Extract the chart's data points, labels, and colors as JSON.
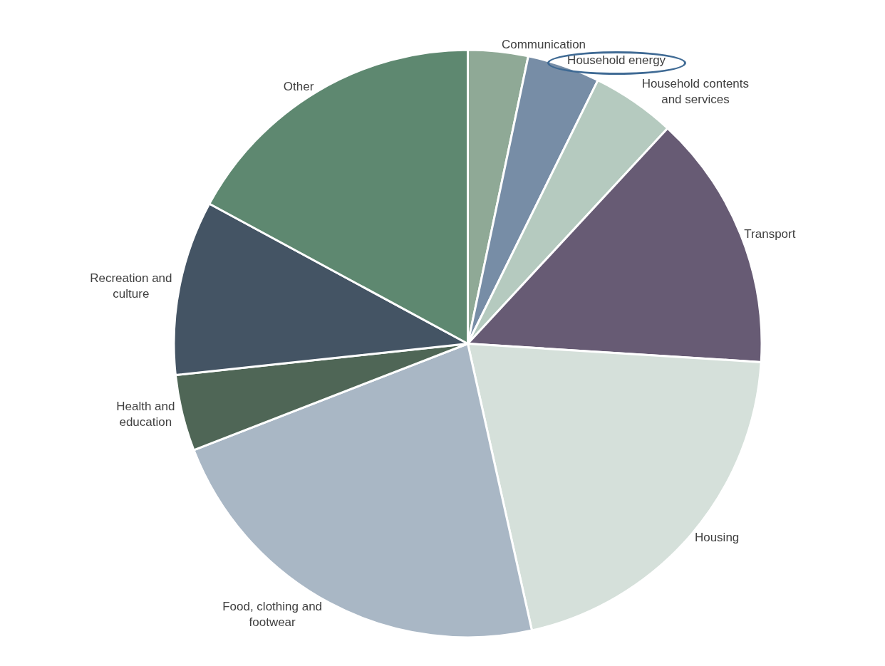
{
  "chart_data": {
    "type": "pie",
    "categories": [
      "Communication",
      "Household energy",
      "Household contents and services",
      "Transport",
      "Housing",
      "Food, clothing and footwear",
      "Health and education",
      "Recreation and culture",
      "Other"
    ],
    "values": [
      3.3,
      4.0,
      4.6,
      14.1,
      20.5,
      22.6,
      4.2,
      9.6,
      17.1
    ],
    "colors": [
      "#8fa996",
      "#778da6",
      "#b5cabf",
      "#675b74",
      "#d5e0da",
      "#a9b7c5",
      "#4f6656",
      "#445464",
      "#5e8870"
    ],
    "legend": false
  }
}
